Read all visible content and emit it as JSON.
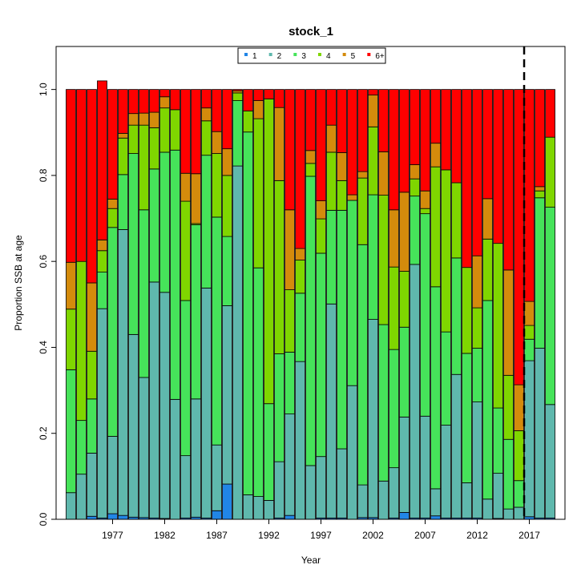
{
  "chart_data": {
    "type": "bar",
    "stacked": true,
    "title": "stock_1",
    "xlabel": "Year",
    "ylabel": "Proportion SSB at age",
    "ylim": [
      0,
      1.1
    ],
    "yticks": [
      "0.0",
      "0.2",
      "0.4",
      "0.6",
      "0.8",
      "1.0"
    ],
    "x": [
      1973,
      1974,
      1975,
      1976,
      1977,
      1978,
      1979,
      1980,
      1981,
      1982,
      1983,
      1984,
      1985,
      1986,
      1987,
      1988,
      1989,
      1990,
      1991,
      1992,
      1993,
      1994,
      1995,
      1996,
      1997,
      1998,
      1999,
      2000,
      2001,
      2002,
      2003,
      2004,
      2005,
      2006,
      2007,
      2008,
      2009,
      2010,
      2011,
      2012,
      2013,
      2014,
      2015,
      2016,
      2017,
      2018,
      2019
    ],
    "xticks": [
      "1977",
      "1982",
      "1987",
      "1992",
      "1997",
      "2002",
      "2007",
      "2012",
      "2017"
    ],
    "vline_x": 2016.5,
    "legend_position": "top-center",
    "series": [
      {
        "name": "1",
        "color": "#2185e6",
        "values": [
          0.0,
          0.0,
          0.007,
          0.003,
          0.013,
          0.009,
          0.005,
          0.004,
          0.003,
          0.002,
          0.0,
          0.003,
          0.005,
          0.003,
          0.02,
          0.082,
          0.0,
          0.0,
          0.0,
          0.0,
          0.003,
          0.009,
          0.0,
          0.0,
          0.003,
          0.003,
          0.003,
          0.0,
          0.004,
          0.004,
          0.0,
          0.003,
          0.016,
          0.003,
          0.003,
          0.008,
          0.003,
          0.003,
          0.003,
          0.003,
          0.0,
          0.002,
          0.0,
          0.0,
          0.006,
          0.003,
          0.003
        ]
      },
      {
        "name": "2",
        "color": "#5fb8ad",
        "values": [
          0.062,
          0.105,
          0.147,
          0.487,
          0.18,
          0.665,
          0.425,
          0.326,
          0.549,
          0.526,
          0.279,
          0.145,
          0.275,
          0.535,
          0.153,
          0.415,
          0.822,
          0.057,
          0.053,
          0.044,
          0.131,
          0.236,
          0.367,
          0.125,
          0.143,
          0.498,
          0.161,
          0.311,
          0.076,
          0.461,
          0.089,
          0.117,
          0.222,
          0.59,
          0.237,
          0.063,
          0.216,
          0.334,
          0.082,
          0.27,
          0.047,
          0.105,
          0.024,
          0.028,
          0.363,
          0.395,
          0.264
        ]
      },
      {
        "name": "3",
        "color": "#46e35a",
        "values": [
          0.286,
          0.125,
          0.126,
          0.085,
          0.486,
          0.128,
          0.421,
          0.39,
          0.263,
          0.326,
          0.58,
          0.361,
          0.405,
          0.309,
          0.53,
          0.161,
          0.152,
          0.844,
          0.532,
          0.225,
          0.251,
          0.144,
          0.159,
          0.673,
          0.473,
          0.218,
          0.555,
          0.431,
          0.559,
          0.29,
          0.364,
          0.275,
          0.209,
          0.159,
          0.471,
          0.47,
          0.217,
          0.271,
          0.301,
          0.125,
          0.462,
          0.152,
          0.162,
          0.062,
          0.05,
          0.35,
          0.459
        ]
      },
      {
        "name": "4",
        "color": "#7fd600",
        "values": [
          0.141,
          0.37,
          0.111,
          0.05,
          0.044,
          0.085,
          0.066,
          0.197,
          0.096,
          0.103,
          0.094,
          0.231,
          0.003,
          0.08,
          0.148,
          0.142,
          0.018,
          0.049,
          0.347,
          0.709,
          0.403,
          0.145,
          0.077,
          0.03,
          0.08,
          0.135,
          0.069,
          0.0,
          0.155,
          0.158,
          0.301,
          0.192,
          0.13,
          0.04,
          0.012,
          0.279,
          0.377,
          0.175,
          0.2,
          0.094,
          0.143,
          0.383,
          0.149,
          0.116,
          0.032,
          0.016,
          0.163
        ]
      },
      {
        "name": "5",
        "color": "#d48b0c",
        "values": [
          0.109,
          0.0,
          0.159,
          0.025,
          0.022,
          0.011,
          0.027,
          0.028,
          0.036,
          0.026,
          0.0,
          0.065,
          0.116,
          0.03,
          0.051,
          0.062,
          0.005,
          0.0,
          0.042,
          0.0,
          0.17,
          0.186,
          0.027,
          0.03,
          0.042,
          0.063,
          0.065,
          0.013,
          0.015,
          0.074,
          0.101,
          0.133,
          0.184,
          0.033,
          0.041,
          0.055,
          0.0,
          0.0,
          0.0,
          0.121,
          0.094,
          0.0,
          0.245,
          0.107,
          0.056,
          0.01,
          0.0
        ]
      },
      {
        "name": "6+",
        "color": "#ff0000",
        "values": [
          0.402,
          0.4,
          0.45,
          0.37,
          0.255,
          0.102,
          0.056,
          0.055,
          0.053,
          0.017,
          0.047,
          0.195,
          0.196,
          0.043,
          0.098,
          0.138,
          0.003,
          0.05,
          0.026,
          0.022,
          0.042,
          0.28,
          0.37,
          0.142,
          0.259,
          0.083,
          0.147,
          0.245,
          0.191,
          0.013,
          0.145,
          0.28,
          0.239,
          0.175,
          0.236,
          0.125,
          0.187,
          0.217,
          0.414,
          0.387,
          0.254,
          0.358,
          0.42,
          0.687,
          0.493,
          0.226,
          0.111
        ]
      }
    ]
  }
}
